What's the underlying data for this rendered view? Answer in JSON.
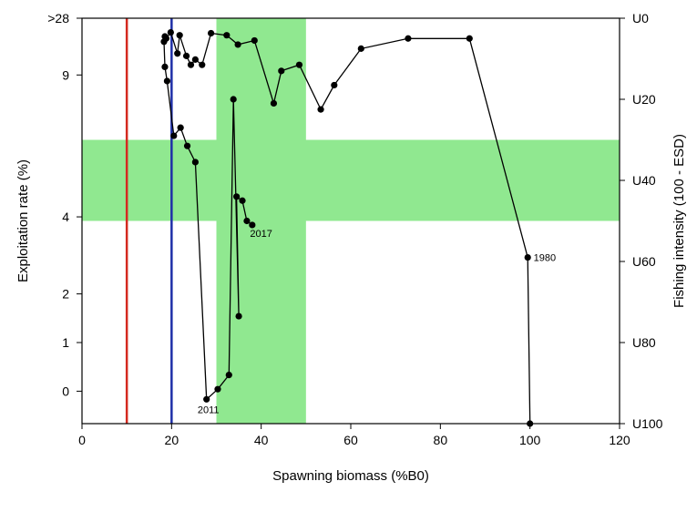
{
  "chart_data": {
    "type": "scatter",
    "xlabel": "Spawning biomass (%B0)",
    "ylabel_left": "Exploitation rate (%)",
    "ylabel_right": "Fishing intensity (100 - ESD)",
    "xlim": [
      0,
      120
    ],
    "x_ticks": [
      0,
      20,
      40,
      60,
      80,
      100,
      120
    ],
    "right_ylim": [
      100,
      0
    ],
    "right_ticks": [
      {
        "value": 0,
        "label": "U0"
      },
      {
        "value": 20,
        "label": "U20"
      },
      {
        "value": 40,
        "label": "U40"
      },
      {
        "value": 60,
        "label": "U60"
      },
      {
        "value": 80,
        "label": "U80"
      },
      {
        "value": 100,
        "label": "U100"
      }
    ],
    "left_ticks": [
      {
        "intensity": 0,
        "label": ">28"
      },
      {
        "intensity": 14,
        "label": "9"
      },
      {
        "intensity": 49,
        "label": "4"
      },
      {
        "intensity": 68,
        "label": "2"
      },
      {
        "intensity": 80,
        "label": "1"
      },
      {
        "intensity": 92,
        "label": "0"
      }
    ],
    "reference_lines": [
      {
        "x": 10,
        "color": "#d42a20"
      },
      {
        "x": 20,
        "color": "#1f2fa8"
      }
    ],
    "target_zone": {
      "x": [
        30,
        50
      ],
      "intensity": [
        30,
        50
      ],
      "color": "#90e890"
    },
    "series": [
      {
        "name": "",
        "color": "#000000",
        "points": [
          {
            "year": "1980",
            "x": 100,
            "y": 100
          },
          {
            "x": 99.5,
            "y": 59
          },
          {
            "x": 86.5,
            "y": 5
          },
          {
            "x": 72.8,
            "y": 5
          },
          {
            "x": 62.3,
            "y": 7.5
          },
          {
            "x": 56.3,
            "y": 16.5
          },
          {
            "x": 53.3,
            "y": 22.5
          },
          {
            "x": 48.5,
            "y": 11.5
          },
          {
            "x": 44.5,
            "y": 13
          },
          {
            "x": 42.8,
            "y": 21
          },
          {
            "x": 38.5,
            "y": 5.5
          },
          {
            "x": 34.8,
            "y": 6.5
          },
          {
            "x": 32.3,
            "y": 4.2
          },
          {
            "x": 28.8,
            "y": 3.7
          },
          {
            "x": 26.8,
            "y": 11.5
          },
          {
            "x": 25.3,
            "y": 10.2
          },
          {
            "x": 24.3,
            "y": 11.5
          },
          {
            "x": 23.3,
            "y": 9.3
          },
          {
            "x": 21.8,
            "y": 4.2
          },
          {
            "x": 21.3,
            "y": 8.7
          },
          {
            "x": 19.8,
            "y": 3.5
          },
          {
            "x": 18.8,
            "y": 5
          },
          {
            "x": 18.5,
            "y": 4.5
          },
          {
            "x": 18.3,
            "y": 5.8
          },
          {
            "x": 18.5,
            "y": 12
          },
          {
            "x": 19.0,
            "y": 15.5
          },
          {
            "x": 20.5,
            "y": 29
          },
          {
            "x": 22.0,
            "y": 27
          },
          {
            "x": 23.5,
            "y": 31.5
          },
          {
            "x": 25.3,
            "y": 35.5
          },
          {
            "x": 27.8,
            "y": 94
          },
          {
            "x": 30.3,
            "y": 91.5
          },
          {
            "x": 32.8,
            "y": 88
          },
          {
            "x": 33.8,
            "y": 20
          },
          {
            "x": 35.0,
            "y": 73.5
          },
          {
            "x": 34.5,
            "y": 44
          },
          {
            "x": 35.8,
            "y": 45
          },
          {
            "x": 36.8,
            "y": 50
          },
          {
            "year": "2017",
            "x": 38.0,
            "y": 51
          }
        ]
      }
    ],
    "point_labels": [
      {
        "text": "1980",
        "x": 100.8,
        "y": 59
      },
      {
        "text": "2011",
        "x": 25.8,
        "y": 96.5
      },
      {
        "text": "2017",
        "x": 37.5,
        "y": 53
      }
    ]
  }
}
